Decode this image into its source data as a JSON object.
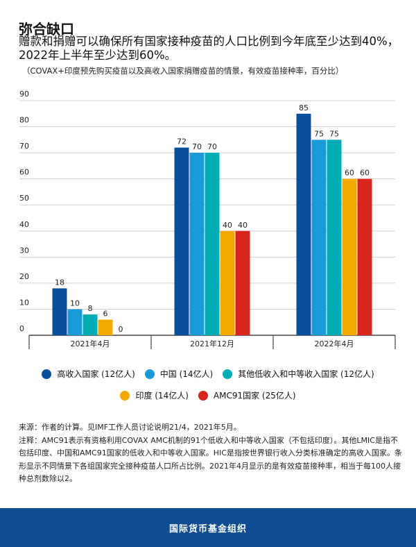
{
  "header": {
    "title": "弥合缺口",
    "subtitle": "赠款和捐赠可以确保所有国家接种疫苗的人口比例到今年底至少达到40%，2022年上半年至少达到60%。",
    "note": "（COVAX+印度预先购买疫苗以及高收入国家捐赠疫苗的情景，有效疫苗接种率，百分比）"
  },
  "chart_data": {
    "type": "bar",
    "categories": [
      "2021年4月",
      "2021年12月",
      "2022年4月"
    ],
    "series": [
      {
        "name": "高收入国家 (12亿人)",
        "color": "#0a4f9c",
        "values": [
          18,
          72,
          85
        ]
      },
      {
        "name": "中国 (14亿人)",
        "color": "#1a9ad6",
        "values": [
          10,
          70,
          75
        ]
      },
      {
        "name": "其他低收入和中等收入国家 (12亿人)",
        "color": "#00adb5",
        "values": [
          8,
          70,
          75
        ]
      },
      {
        "name": "印度 (14亿人)",
        "color": "#f2a900",
        "values": [
          6,
          40,
          60
        ]
      },
      {
        "name": "AMC91国家 (25亿人)",
        "color": "#d9261c",
        "values": [
          0,
          40,
          60
        ]
      }
    ],
    "yticks": [
      0,
      10,
      20,
      30,
      40,
      50,
      60,
      70,
      80,
      90
    ],
    "ylim": [
      0,
      90
    ],
    "grid": true,
    "legend_position": "bottom"
  },
  "footnotes": {
    "source": "来源：作者的计算。见IMF工作人员讨论说明21/4，2021年5月。",
    "note": "注释：AMC91表示有资格利用COVAX AMC机制的91个低收入和中等收入国家（不包括印度）。其他LMIC是指不包括印度、中国和AMC91国家的低收入和中等收入国家。HIC是指按世界银行收入分类标准确定的高收入国家。条形显示不同情景下各组国家完全接种疫苗人口所占比例。2021年4月显示的是有效疫苗接种率，相当于每100人接种总剂数除以2。"
  },
  "footer": {
    "org": "国际货币基金组织"
  }
}
